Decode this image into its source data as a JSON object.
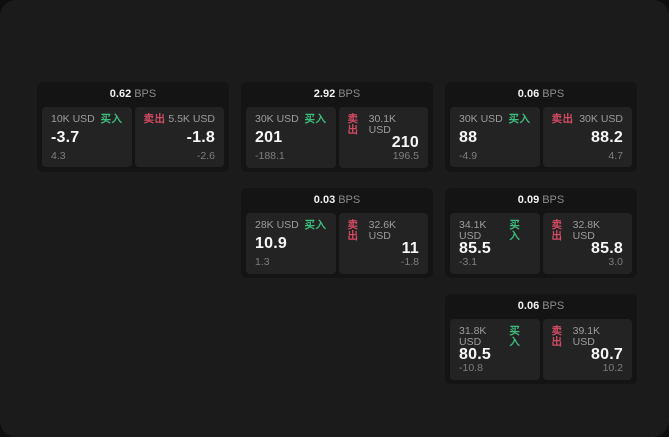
{
  "labels": {
    "bps_suffix": "BPS",
    "buy_label": "买入",
    "sell_label": "卖出"
  },
  "colors": {
    "buy": "#3dbd7d",
    "sell": "#d24b63",
    "surface": "#1b1b1c",
    "backdrop": "#0e0e0f",
    "card": "#141415",
    "panel": "#232324"
  },
  "cards": [
    {
      "row": 1,
      "col": 1,
      "bps": "0.62",
      "buy": {
        "size": "10K USD",
        "value": "-3.7",
        "delta": "4.3"
      },
      "sell": {
        "size": "5.5K USD",
        "value": "-1.8",
        "delta": "-2.6"
      }
    },
    {
      "row": 1,
      "col": 2,
      "bps": "2.92",
      "buy": {
        "size": "30K USD",
        "value": "201",
        "delta": "-188.1"
      },
      "sell": {
        "size": "30.1K USD",
        "value": "210",
        "delta": "196.5"
      }
    },
    {
      "row": 1,
      "col": 3,
      "bps": "0.06",
      "buy": {
        "size": "30K USD",
        "value": "88",
        "delta": "-4.9"
      },
      "sell": {
        "size": "30K USD",
        "value": "88.2",
        "delta": "4.7"
      }
    },
    {
      "row": 2,
      "col": 2,
      "bps": "0.03",
      "buy": {
        "size": "28K USD",
        "value": "10.9",
        "delta": "1.3"
      },
      "sell": {
        "size": "32.6K USD",
        "value": "11",
        "delta": "-1.8"
      }
    },
    {
      "row": 2,
      "col": 3,
      "bps": "0.09",
      "buy": {
        "size": "34.1K USD",
        "value": "85.5",
        "delta": "-3.1"
      },
      "sell": {
        "size": "32.8K USD",
        "value": "85.8",
        "delta": "3.0"
      }
    },
    {
      "row": 3,
      "col": 3,
      "bps": "0.06",
      "buy": {
        "size": "31.8K USD",
        "value": "80.5",
        "delta": "-10.8"
      },
      "sell": {
        "size": "39.1K USD",
        "value": "80.7",
        "delta": "10.2"
      }
    }
  ]
}
